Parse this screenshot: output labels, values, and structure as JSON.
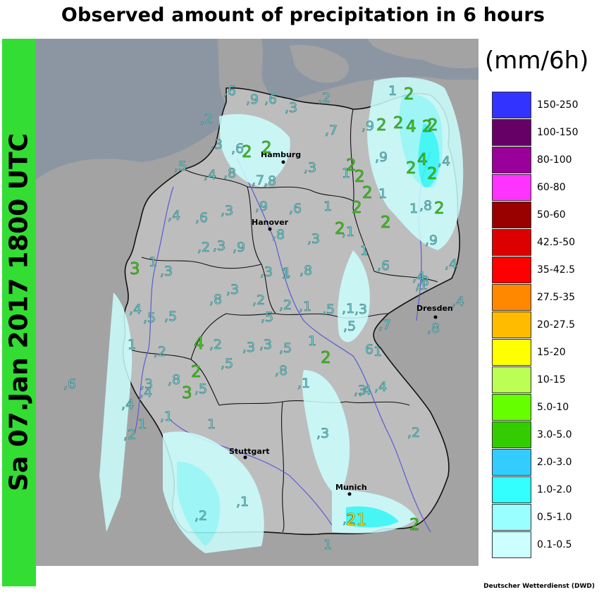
{
  "title": "Observed amount of precipitation in 6 hours",
  "date_label": "Sa 07.Jan 2017 1800 UTC",
  "unit": "(mm/6h)",
  "credit": "Deutscher Wetterdienst (DWD)",
  "colors": {
    "sidebar": "#33dd33",
    "sea": "#8c96a3",
    "land_out": "#a3a3a3",
    "land_de": "#bdbdbd",
    "rivers": "#5a5ad6"
  },
  "legend": [
    {
      "label": "150-250",
      "color": "#3333ff"
    },
    {
      "label": "100-150",
      "color": "#660066"
    },
    {
      "label": "80-100",
      "color": "#990099"
    },
    {
      "label": "60-80",
      "color": "#ff33ff"
    },
    {
      "label": "50-60",
      "color": "#990000"
    },
    {
      "label": "42.5-50",
      "color": "#dd0000"
    },
    {
      "label": "35-42.5",
      "color": "#ff0000"
    },
    {
      "label": "27.5-35",
      "color": "#ff8800"
    },
    {
      "label": "20-27.5",
      "color": "#ffbb00"
    },
    {
      "label": "15-20",
      "color": "#ffff00"
    },
    {
      "label": "10-15",
      "color": "#bbff55"
    },
    {
      "label": "5.0-10",
      "color": "#66ff00"
    },
    {
      "label": "3.0-5.0",
      "color": "#33cc00"
    },
    {
      "label": "2.0-3.0",
      "color": "#33ccff"
    },
    {
      "label": "1.0-2.0",
      "color": "#33ffff"
    },
    {
      "label": "0.5-1.0",
      "color": "#99ffff"
    },
    {
      "label": "0.1-0.5",
      "color": "#ccffff"
    }
  ],
  "cities": [
    {
      "name": "Hamburg"
    },
    {
      "name": "Hanover"
    },
    {
      "name": "Dresden"
    },
    {
      "name": "Stuttgart"
    },
    {
      "name": "Munich"
    }
  ],
  "observations": [
    ",6",
    ",9",
    ",6",
    ",3",
    ",2",
    "1",
    "2",
    ",2",
    ",7",
    ",9",
    "2",
    "2",
    "4",
    "2",
    "2",
    ",9",
    ",3",
    "4",
    "2",
    ",6",
    "2",
    ",3",
    ",5",
    ",4",
    ",8",
    ",7",
    ",8",
    "1",
    "2",
    "2",
    "2",
    "1",
    "2",
    "2",
    ",4",
    ",4",
    ",6",
    ",3",
    ",9",
    ",6",
    "1",
    "2",
    ",1",
    "2",
    "2",
    "1",
    ",8",
    ",8",
    ",2",
    ",3",
    ",9",
    ",3",
    "2",
    "1",
    "1",
    ",4",
    ",9",
    "3",
    "1",
    ",3",
    ",3",
    "1",
    ",8",
    ",1",
    ",6",
    ",4",
    ",4",
    ",5",
    ",5",
    ",8",
    ",3",
    ",2",
    ",5",
    ",2",
    ",1",
    ",5",
    ",1",
    ",3",
    ",8",
    ",4",
    "1",
    ",2",
    "4",
    ",2",
    ",3",
    ",3",
    ",5",
    "1",
    "2",
    ",5",
    "6",
    "1",
    ",7",
    ",8",
    ",6",
    ",3",
    ",8",
    "2",
    ",5",
    ",8",
    ",1",
    ",3",
    ",4",
    ",4",
    ",4",
    ",4",
    "3",
    ",5",
    "1",
    ",1",
    "1",
    ",2",
    ",3",
    ",2",
    ",2",
    ",1",
    ",2",
    "21",
    "1",
    "2"
  ]
}
